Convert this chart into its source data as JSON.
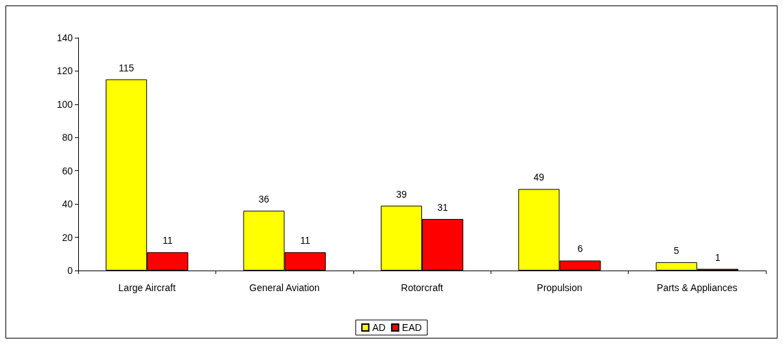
{
  "chart_data": {
    "type": "bar",
    "categories": [
      "Large Aircraft",
      "General Aviation",
      "Rotorcraft",
      "Propulsion",
      "Parts & Appliances"
    ],
    "series": [
      {
        "name": "AD",
        "color": "#ffff00",
        "values": [
          115,
          36,
          39,
          49,
          5
        ]
      },
      {
        "name": "EAD",
        "color": "#ff0000",
        "values": [
          11,
          11,
          31,
          6,
          1
        ]
      }
    ],
    "ylim": [
      0,
      140
    ],
    "yticks": [
      0,
      20,
      40,
      60,
      80,
      100,
      120,
      140
    ],
    "grid": false,
    "legend": "bottom",
    "data_labels": true
  }
}
